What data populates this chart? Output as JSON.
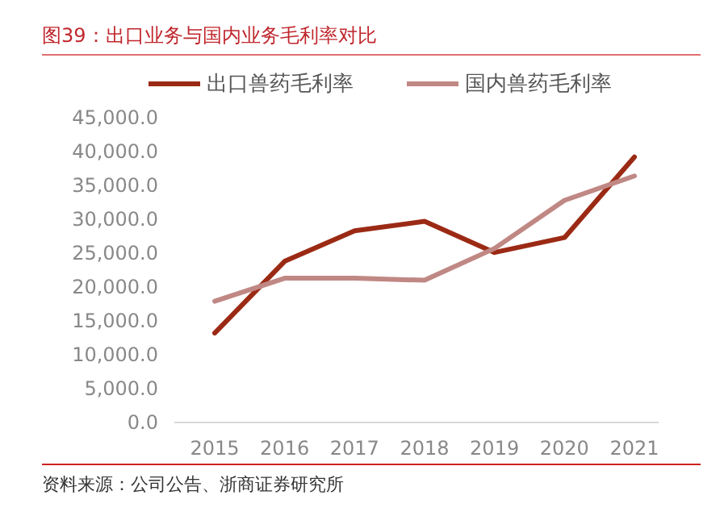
{
  "chart_data": {
    "type": "line",
    "title": "图39：出口业务与国内业务毛利率对比",
    "categories": [
      "2015",
      "2016",
      "2017",
      "2018",
      "2019",
      "2020",
      "2021"
    ],
    "series": [
      {
        "name": "出口兽药毛利率",
        "color": "#9b2a14",
        "values": [
          13200,
          23800,
          28300,
          29700,
          25100,
          27300,
          39200
        ]
      },
      {
        "name": "国内兽药毛利率",
        "color": "#c08884",
        "values": [
          17900,
          21300,
          21300,
          21000,
          25700,
          32800,
          36400
        ]
      }
    ],
    "ylim": [
      0,
      45000
    ],
    "yticks": [
      {
        "value": 0,
        "label": "0.0"
      },
      {
        "value": 5000,
        "label": "5,000.0"
      },
      {
        "value": 10000,
        "label": "10,000.0"
      },
      {
        "value": 15000,
        "label": "15,000.0"
      },
      {
        "value": 20000,
        "label": "20,000.0"
      },
      {
        "value": 25000,
        "label": "25,000.0"
      },
      {
        "value": 30000,
        "label": "30,000.0"
      },
      {
        "value": 35000,
        "label": "35,000.0"
      },
      {
        "value": 40000,
        "label": "40,000.0"
      },
      {
        "value": 45000,
        "label": "45,000.0"
      }
    ],
    "grid": false,
    "legend": "top",
    "marker": "none",
    "line_style": "solid",
    "annotations": [
      "资料来源：公司公告、浙商证券研究所"
    ]
  }
}
